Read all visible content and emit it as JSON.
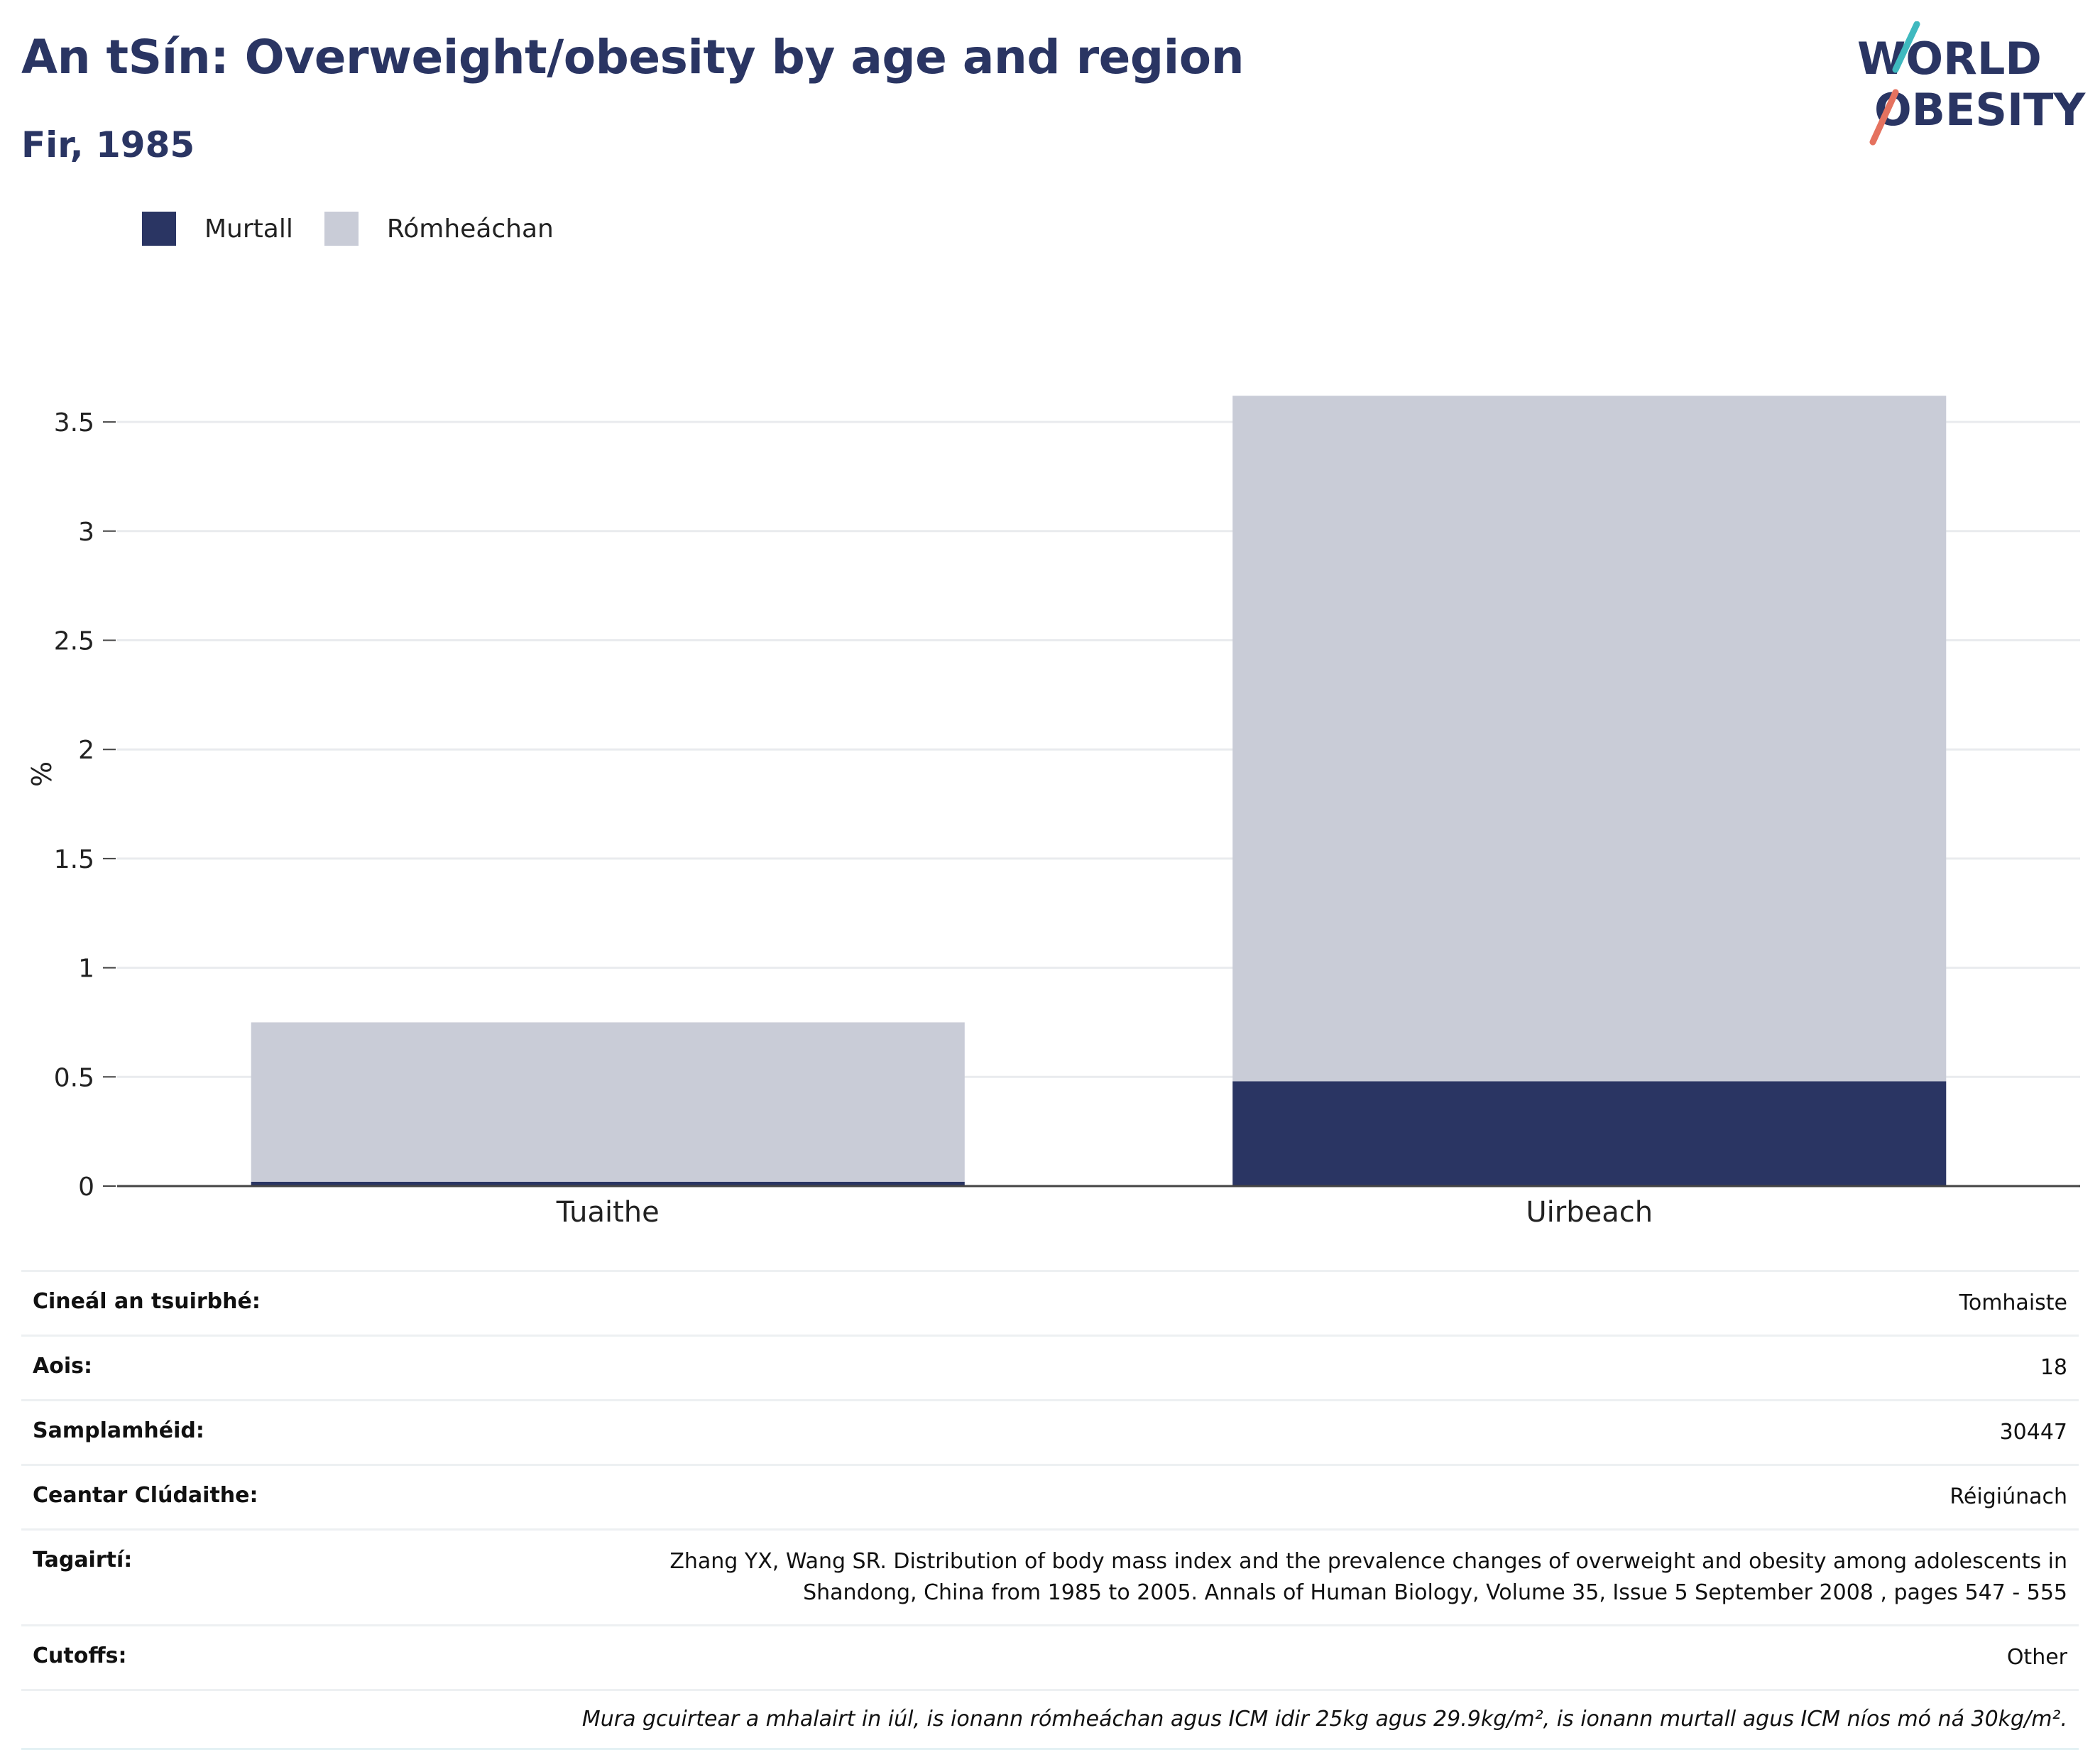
{
  "header": {
    "title": "An tSín: Overweight/obesity by age and region",
    "subtitle": "Fir, 1985"
  },
  "logo": {
    "line1": "WORLD",
    "line2": "OBESITY"
  },
  "colors": {
    "obese": "#2a3563",
    "overweight": "#c9ccd7",
    "accent_teal": "#3fb9bf",
    "accent_coral": "#e5725f"
  },
  "chart_data": {
    "type": "bar",
    "stacked": true,
    "categories": [
      "Tuaithe",
      "Uirbeach"
    ],
    "series": [
      {
        "name": "Murtall",
        "values": [
          0.02,
          0.48
        ]
      },
      {
        "name": "Rómheáchan",
        "values": [
          0.73,
          3.14
        ]
      }
    ],
    "ylabel": "%",
    "xlabel": "",
    "ylim": [
      0,
      3.6
    ],
    "yticks": [
      0,
      0.5,
      1,
      1.5,
      2,
      2.5,
      3,
      3.5
    ],
    "ytick_labels": [
      "0",
      "0.5",
      "1",
      "1.5",
      "2",
      "2.5",
      "3",
      "3.5"
    ],
    "grid": true,
    "legend_position": "top-left"
  },
  "info": {
    "rows": [
      {
        "label": "Cineál an tsuirbhé:",
        "value": "Tomhaiste"
      },
      {
        "label": "Aois:",
        "value": "18"
      },
      {
        "label": "Samplamhéid:",
        "value": "30447"
      },
      {
        "label": "Ceantar Clúdaithe:",
        "value": "Réigiúnach"
      },
      {
        "label": "Tagairtí:",
        "value_lines": [
          "Zhang YX, Wang SR. Distribution of body mass index and the prevalence changes of overweight and obesity among adolescents in",
          "Shandong, China from 1985 to 2005. Annals of Human Biology, Volume 35, Issue 5 September 2008 , pages 547 - 555"
        ]
      },
      {
        "label": "Cutoffs:",
        "value": "Other"
      }
    ],
    "note": "Mura gcuirtear a mhalairt in iúl, is ionann rómheáchan agus ICM idir 25kg agus 29.9kg/m², is ionann murtall agus ICM níos mó ná 30kg/m²."
  }
}
